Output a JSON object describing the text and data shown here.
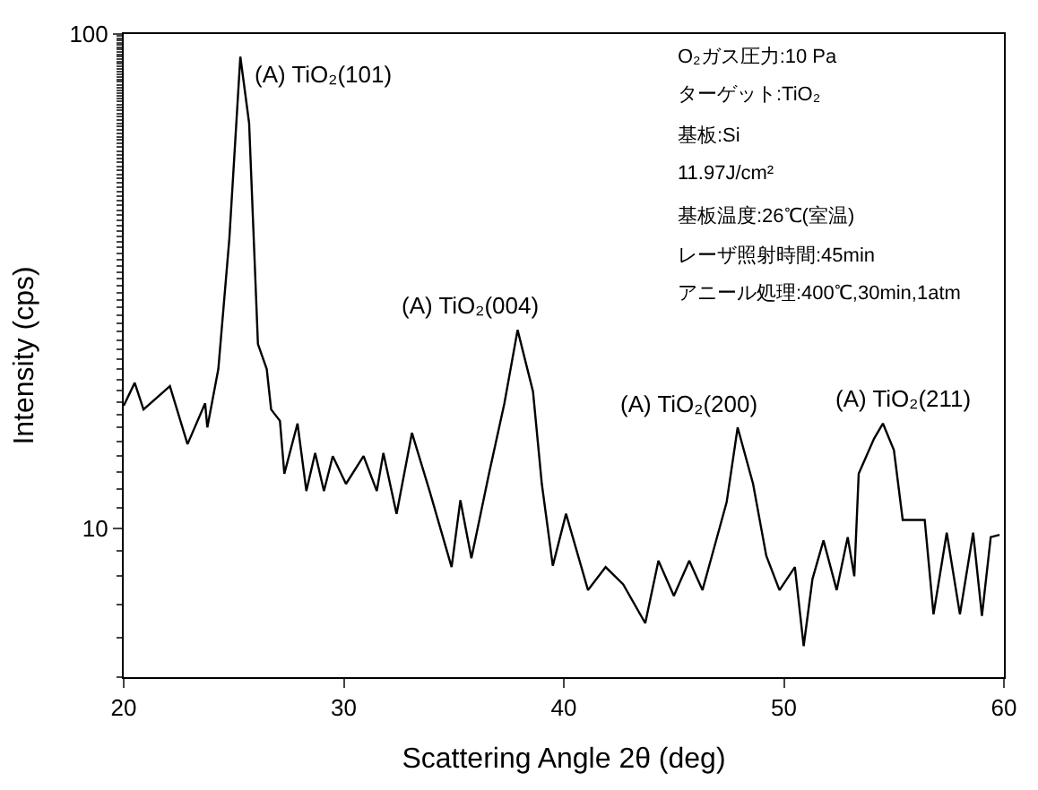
{
  "chart_data": {
    "type": "line",
    "xlabel": "Scattering Angle 2θ (deg)",
    "ylabel": "Intensity (cps)",
    "x": [
      20.0,
      20.5,
      20.9,
      22.1,
      22.9,
      23.7,
      23.8,
      24.3,
      24.8,
      25.3,
      25.7,
      26.1,
      26.5,
      26.7,
      27.1,
      27.3,
      27.9,
      28.3,
      28.7,
      29.1,
      29.5,
      30.1,
      30.9,
      31.5,
      31.8,
      32.4,
      33.1,
      33.9,
      34.9,
      35.3,
      35.8,
      36.6,
      37.3,
      37.9,
      38.6,
      39.0,
      39.5,
      40.1,
      41.1,
      41.9,
      42.7,
      43.7,
      44.3,
      45.0,
      45.7,
      46.3,
      46.7,
      47.4,
      47.9,
      48.6,
      49.2,
      49.8,
      50.5,
      50.9,
      51.3,
      51.8,
      52.4,
      52.9,
      53.2,
      53.4,
      54.1,
      54.5,
      55.0,
      55.4,
      56.4,
      56.8,
      57.4,
      58.0,
      58.6,
      59.0,
      59.4,
      59.8
    ],
    "series": [
      {
        "color": "#000000",
        "values": [
          17.7,
          19.7,
          17.4,
          19.4,
          14.8,
          17.9,
          16.0,
          21.0,
          38.5,
          90,
          66,
          23.6,
          21.0,
          17.4,
          16.5,
          12.9,
          16.3,
          11.9,
          14.2,
          11.9,
          14.0,
          12.3,
          14.0,
          11.9,
          14.2,
          10.7,
          15.6,
          11.9,
          8.35,
          11.4,
          8.7,
          12.9,
          17.9,
          25.2,
          18.9,
          12.3,
          8.4,
          10.7,
          7.5,
          8.35,
          7.7,
          6.43,
          8.6,
          7.3,
          8.6,
          7.5,
          8.7,
          11.3,
          16.0,
          12.3,
          8.8,
          7.5,
          8.35,
          5.78,
          7.9,
          9.45,
          7.5,
          9.6,
          8.0,
          12.9,
          15.2,
          16.3,
          14.4,
          10.4,
          10.4,
          6.7,
          9.8,
          6.7,
          9.8,
          6.65,
          9.6,
          9.7
        ]
      }
    ],
    "xlim": [
      20,
      60
    ],
    "xticks": [
      20,
      30,
      40,
      50,
      60
    ],
    "ylim": [
      5,
      100
    ],
    "yticks": [
      10,
      100
    ],
    "log": "y",
    "marker": "none",
    "line_style": "solid",
    "annotations": [
      {
        "text": "(A) TiO₂(101)",
        "x": 25.3,
        "y": 90
      },
      {
        "text": "(A) TiO₂(004)",
        "x": 37.9,
        "y": 25.2
      },
      {
        "text": "(A) TiO₂(200)",
        "x": 47.9,
        "y": 16.0
      },
      {
        "text": "(A) TiO₂(211)",
        "x": 54.5,
        "y": 16.3
      },
      "O₂ガス圧力:10 Pa",
      "ターゲット:TiO₂",
      "基板:Si",
      "11.97J/cm²",
      "基板温度:26℃(室温)",
      "レーザ照射時間:45min",
      "アニール処理:400℃,30min,1atm"
    ]
  }
}
